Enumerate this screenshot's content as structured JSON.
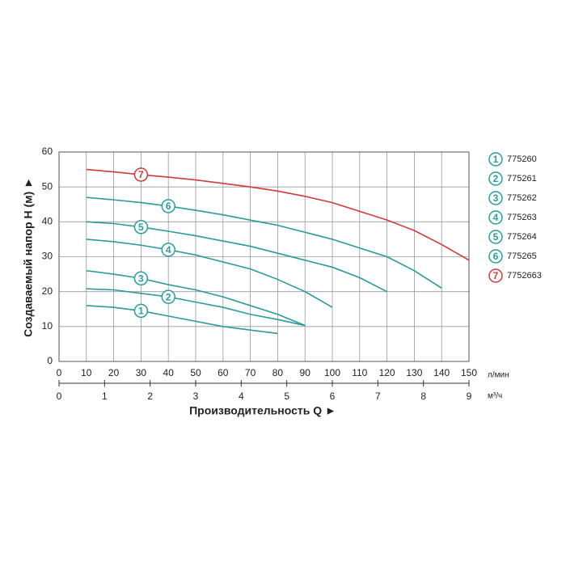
{
  "chart_data": {
    "type": "line",
    "y_label": "Создаваемый напор H (м) ►",
    "x_label": "Производительность Q ►",
    "x_unit": "л/мин",
    "x2_unit": "м³/ч",
    "xlim": [
      0,
      150
    ],
    "xticks": [
      0,
      10,
      20,
      30,
      40,
      50,
      60,
      70,
      80,
      90,
      100,
      110,
      120,
      130,
      140,
      150
    ],
    "x2lim": [
      0,
      9
    ],
    "x2ticks": [
      0,
      1,
      2,
      3,
      4,
      5,
      6,
      7,
      8,
      9
    ],
    "ylim": [
      0,
      60
    ],
    "yticks": [
      0,
      10,
      20,
      30,
      40,
      50,
      60
    ],
    "grid": true,
    "series": [
      {
        "name": "775260",
        "label": "1",
        "color": "#2a9a9a",
        "x": [
          10,
          20,
          30,
          40,
          50,
          60,
          70,
          80
        ],
        "values": [
          16,
          15.5,
          14.5,
          13,
          11.5,
          10,
          9,
          8
        ]
      },
      {
        "name": "775261",
        "label": "2",
        "color": "#2a9a9a",
        "x": [
          10,
          20,
          30,
          40,
          50,
          60,
          70,
          80,
          90
        ],
        "values": [
          20.8,
          20.5,
          19.5,
          18.5,
          17,
          15.5,
          13.5,
          12,
          10.3
        ]
      },
      {
        "name": "775262",
        "label": "3",
        "color": "#2a9a9a",
        "x": [
          10,
          20,
          30,
          40,
          50,
          60,
          70,
          80,
          90
        ],
        "values": [
          26,
          25,
          23.8,
          22,
          20.5,
          18.5,
          16,
          13.5,
          10.3
        ]
      },
      {
        "name": "775263",
        "label": "4",
        "color": "#2a9a9a",
        "x": [
          10,
          20,
          30,
          40,
          50,
          60,
          70,
          80,
          90,
          100
        ],
        "values": [
          35,
          34.3,
          33.3,
          32,
          30.5,
          28.5,
          26.5,
          23.5,
          20,
          15.5
        ]
      },
      {
        "name": "775264",
        "label": "5",
        "color": "#2a9a9a",
        "x": [
          10,
          20,
          30,
          40,
          50,
          60,
          70,
          80,
          90,
          100,
          110,
          120
        ],
        "values": [
          40,
          39.5,
          38.5,
          37.3,
          36,
          34.5,
          33,
          31,
          29,
          27,
          24,
          20
        ]
      },
      {
        "name": "775265",
        "label": "6",
        "color": "#2a9a9a",
        "x": [
          10,
          20,
          30,
          40,
          50,
          60,
          70,
          80,
          90,
          100,
          110,
          120,
          130,
          140
        ],
        "values": [
          47,
          46.3,
          45.5,
          44.5,
          43.3,
          42,
          40.5,
          39,
          37,
          35,
          32.5,
          30,
          26,
          21
        ]
      },
      {
        "name": "7752663",
        "label": "7",
        "color": "#d03a3a",
        "x": [
          10,
          20,
          30,
          40,
          50,
          60,
          70,
          80,
          90,
          100,
          110,
          120,
          130,
          140,
          150
        ],
        "values": [
          55,
          54.3,
          53.5,
          52.8,
          52,
          51,
          50,
          48.8,
          47.3,
          45.5,
          43,
          40.5,
          37.5,
          33.5,
          29
        ]
      }
    ]
  }
}
